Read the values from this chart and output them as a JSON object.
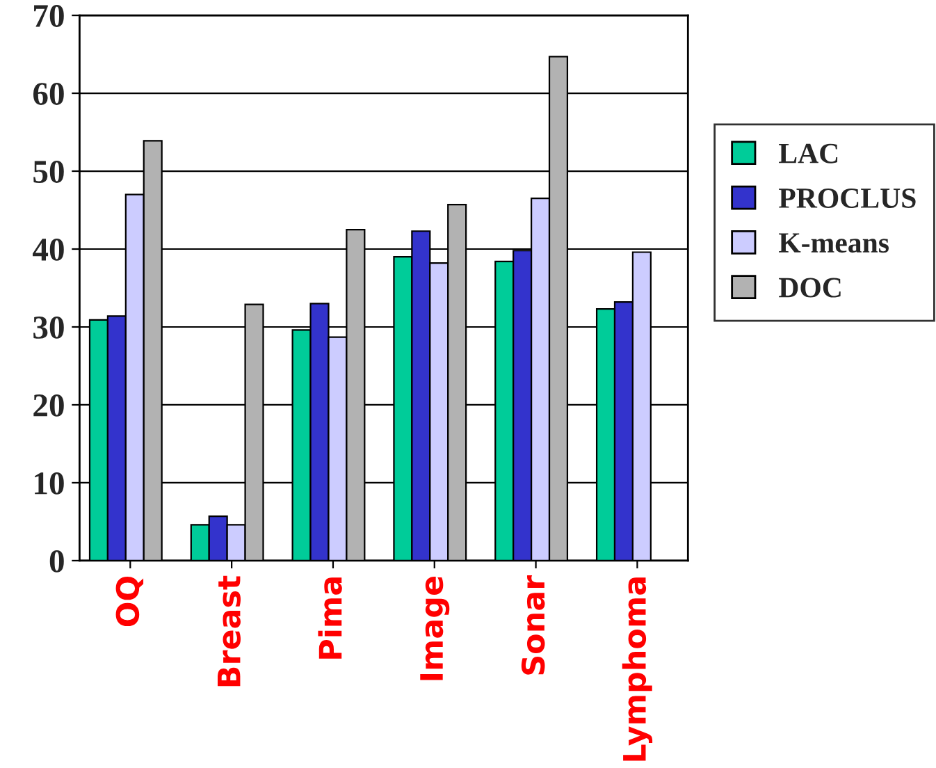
{
  "chart_data": {
    "type": "bar",
    "categories": [
      "OQ",
      "Breast",
      "Pima",
      "Image",
      "Sonar",
      "Lymphoma"
    ],
    "series": [
      {
        "name": "LAC",
        "color": "#00cc99",
        "values": [
          30.9,
          4.6,
          29.6,
          39,
          38.4,
          32.3
        ]
      },
      {
        "name": "PROCLUS",
        "color": "#3333cc",
        "values": [
          31.4,
          5.7,
          33,
          42.3,
          39.8,
          33.2
        ]
      },
      {
        "name": "K-means",
        "color": "#ccccff",
        "values": [
          47,
          4.6,
          28.7,
          38.2,
          46.5,
          39.6
        ]
      },
      {
        "name": "DOC",
        "color": "#b2b2b2",
        "values": [
          53.9,
          32.9,
          42.5,
          45.7,
          64.7,
          null
        ]
      }
    ],
    "ylim": [
      0,
      70
    ],
    "yticks": [
      0,
      10,
      20,
      30,
      40,
      50,
      60,
      70
    ],
    "grid": "y",
    "legend": "right"
  }
}
